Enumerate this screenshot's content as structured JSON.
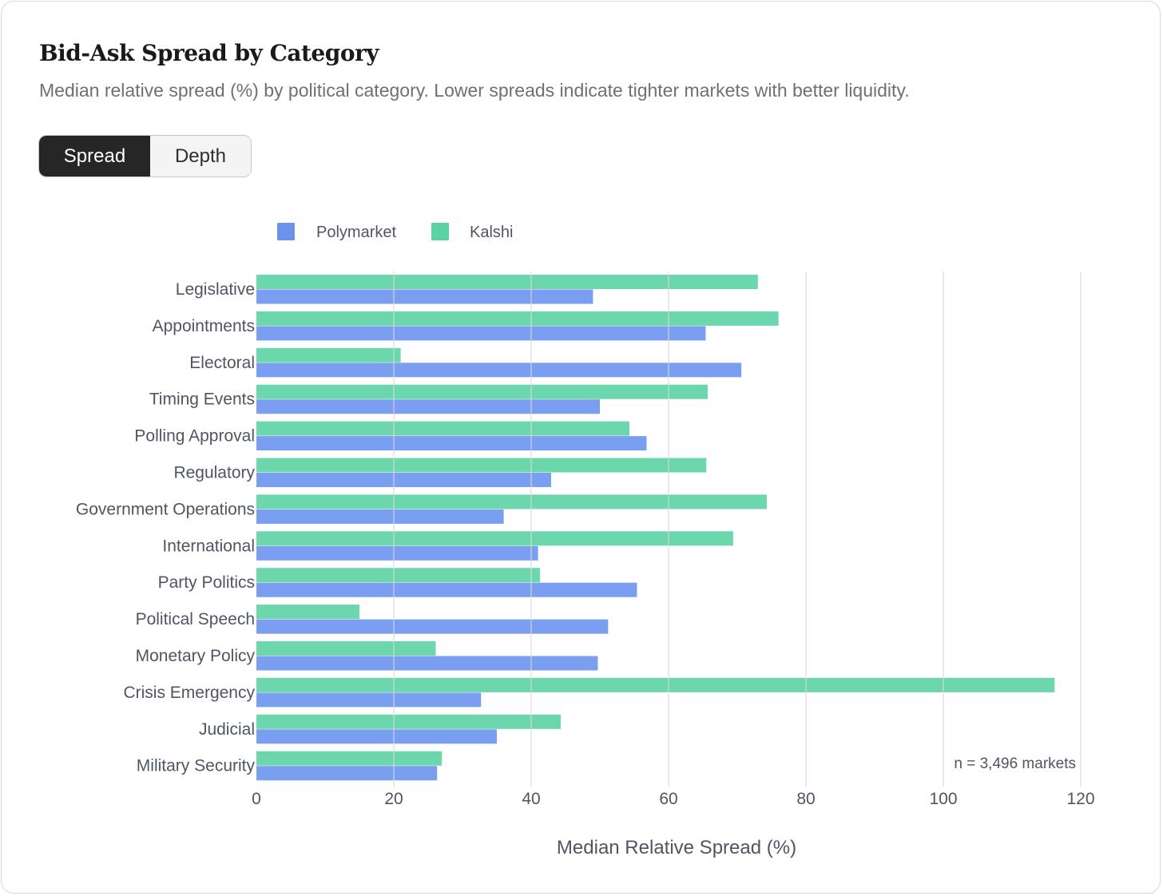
{
  "header": {
    "title": "Bid-Ask Spread by Category",
    "subtitle": "Median relative spread (%) by political category. Lower spreads indicate tighter markets with better liquidity."
  },
  "toggle": {
    "options": [
      {
        "label": "Spread",
        "active": true
      },
      {
        "label": "Depth",
        "active": false
      }
    ]
  },
  "colors": {
    "polymarket": "#6b93ee",
    "kalshi": "#5cd1a4",
    "grid": "#e3e3e3"
  },
  "chart_data": {
    "type": "bar",
    "orientation": "horizontal",
    "categories": [
      "Legislative",
      "Appointments",
      "Electoral",
      "Timing Events",
      "Polling Approval",
      "Regulatory",
      "Government Operations",
      "International",
      "Party Politics",
      "Political Speech",
      "Monetary Policy",
      "Crisis Emergency",
      "Judicial",
      "Military Security"
    ],
    "series": [
      {
        "name": "Kalshi",
        "values": [
          73,
          76,
          21,
          65.7,
          54.3,
          65.5,
          74.3,
          69.4,
          41.3,
          15,
          26.1,
          116.2,
          44.3,
          27
        ]
      },
      {
        "name": "Polymarket",
        "values": [
          49,
          65.4,
          70.6,
          50,
          56.8,
          42.9,
          36,
          41,
          55.4,
          51.2,
          49.7,
          32.7,
          35,
          26.3
        ]
      }
    ],
    "legend": [
      "Polymarket",
      "Kalshi"
    ],
    "legend_position": "top-left",
    "xlabel": "Median Relative Spread (%)",
    "ylabel": "",
    "xlim": [
      0,
      120
    ],
    "xticks": [
      0,
      20,
      40,
      60,
      80,
      100,
      120
    ],
    "annotation": "n = 3,496 markets",
    "grid": true
  }
}
